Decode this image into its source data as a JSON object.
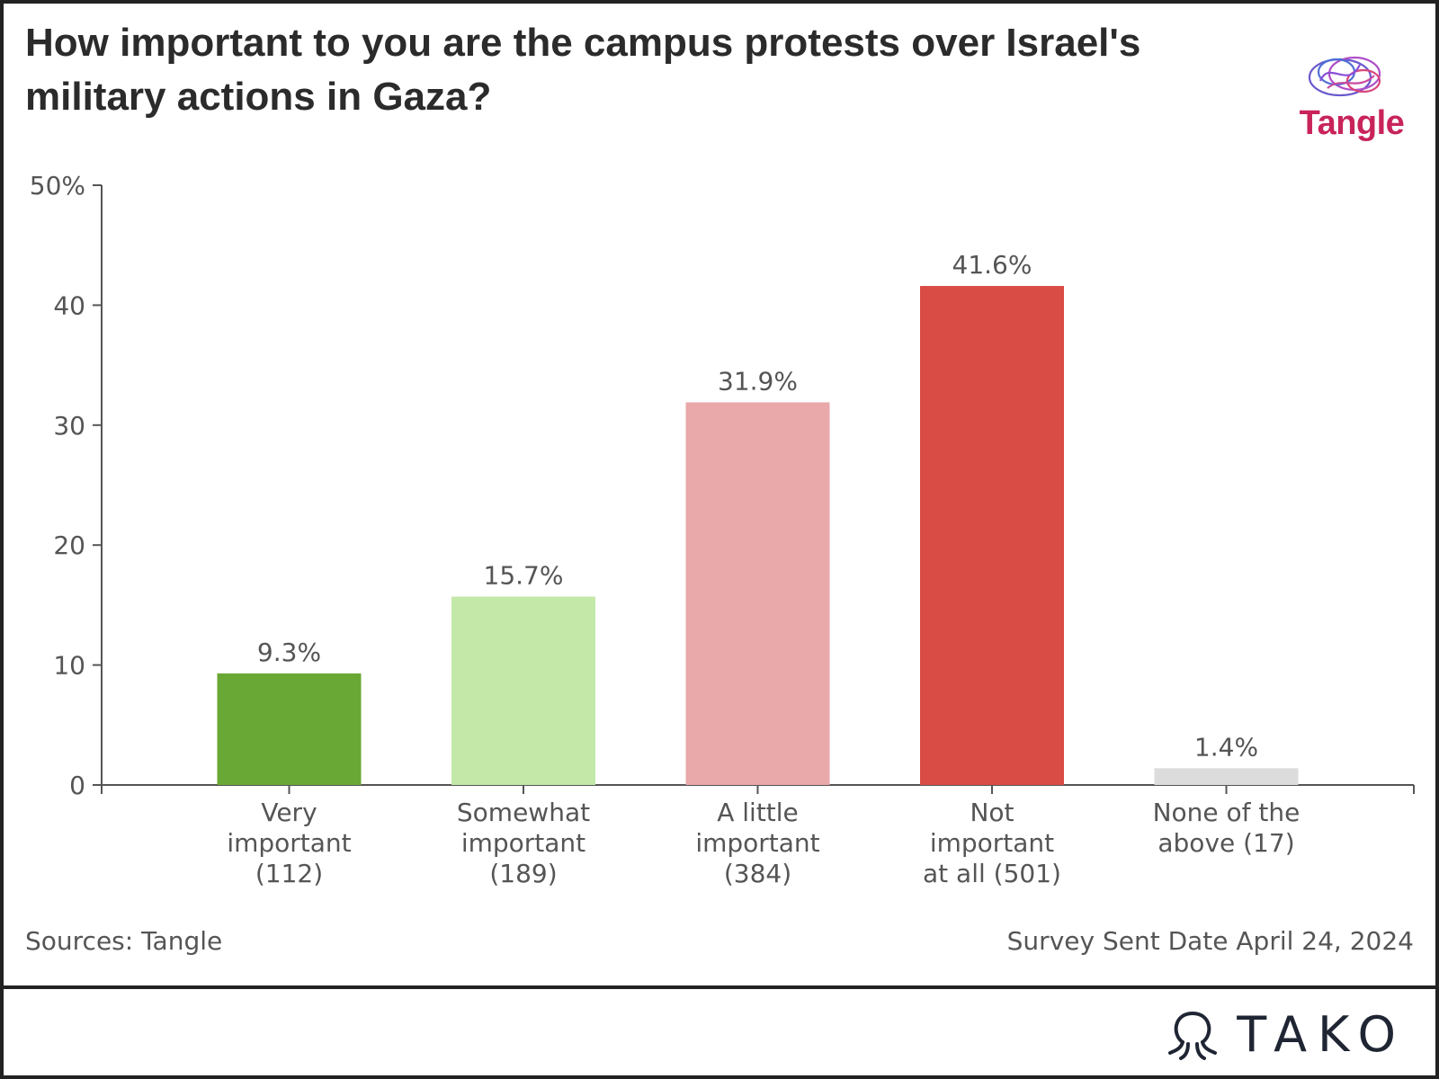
{
  "header": {
    "title": "How important to you are the campus protests over Israel's military actions in Gaza?",
    "brand": "Tangle"
  },
  "footer": {
    "source": "Sources: Tangle",
    "date_note": "Survey Sent Date April 24, 2024",
    "tako": "TAKO"
  },
  "chart_data": {
    "type": "bar",
    "title": "How important to you are the campus protests over Israel's military actions in Gaza?",
    "categories": [
      [
        "Very",
        "important",
        "(112)"
      ],
      [
        "Somewhat",
        "important",
        "(189)"
      ],
      [
        "A little",
        "important",
        "(384)"
      ],
      [
        "Not",
        "important",
        "at all (501)"
      ],
      [
        "None of the",
        "above (17)"
      ]
    ],
    "values": [
      9.3,
      15.7,
      31.9,
      41.6,
      1.4
    ],
    "value_labels": [
      "9.3%",
      "15.7%",
      "31.9%",
      "41.6%",
      "1.4%"
    ],
    "colors": [
      "#6aa835",
      "#c3e8a8",
      "#e9a8aa",
      "#d94b45",
      "#dcdcdc"
    ],
    "ylim": [
      0,
      50
    ],
    "yticks": [
      0,
      10,
      20,
      30,
      40,
      50
    ],
    "ytick_labels": [
      "0",
      "10",
      "20",
      "30",
      "40",
      "50%"
    ],
    "grid": false
  }
}
